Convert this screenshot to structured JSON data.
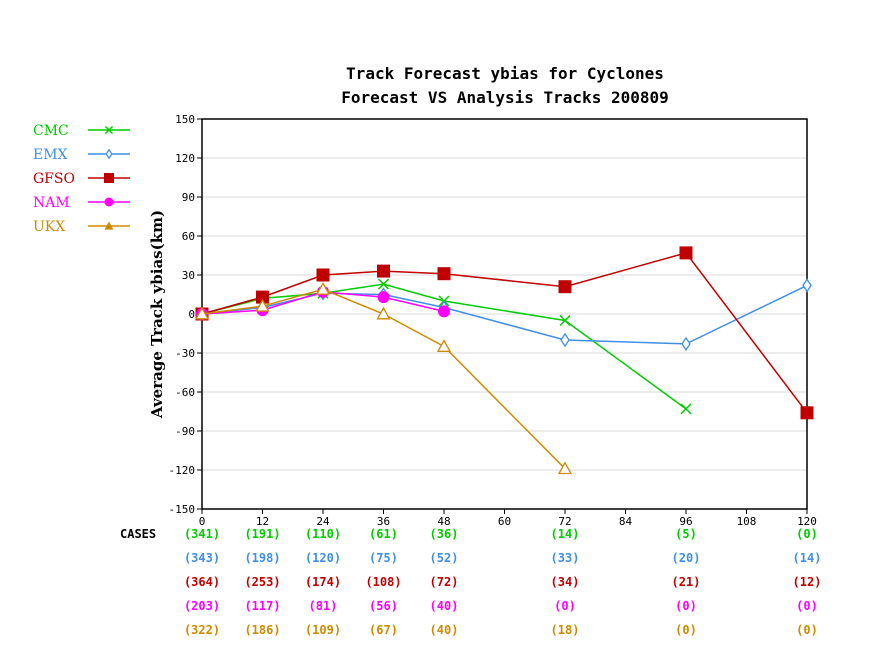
{
  "chart_data": {
    "type": "line",
    "title": "Track Forecast ybias for Cyclones",
    "subtitle": "Forecast VS Analysis Tracks 200809",
    "ylabel": "Average Track ybias(km)",
    "xlabel": "",
    "xlim": [
      0,
      120
    ],
    "ylim": [
      -150,
      150
    ],
    "xticks": [
      0,
      12,
      24,
      36,
      48,
      60,
      72,
      84,
      96,
      108,
      120
    ],
    "yticks": [
      -150,
      -120,
      -90,
      -60,
      -30,
      0,
      30,
      60,
      90,
      120,
      150
    ],
    "grid": true,
    "legend_position": "left-outside",
    "cases_label": "CASES",
    "series": [
      {
        "name": "CMC",
        "color": "#00cc00",
        "marker": "x",
        "points": [
          [
            0,
            0
          ],
          [
            12,
            12
          ],
          [
            24,
            16
          ],
          [
            36,
            23
          ],
          [
            48,
            10
          ],
          [
            72,
            -5
          ],
          [
            96,
            -73
          ]
        ],
        "cases": [
          "(341)",
          "(191)",
          "(110)",
          "(61)",
          "(36)",
          "",
          "(14)",
          "",
          "(5)",
          "",
          "(0)"
        ]
      },
      {
        "name": "EMX",
        "color": "#3f8fe8",
        "marker": "diamond-open",
        "points": [
          [
            0,
            0
          ],
          [
            12,
            5
          ],
          [
            24,
            16
          ],
          [
            36,
            15
          ],
          [
            48,
            5
          ],
          [
            72,
            -20
          ],
          [
            96,
            -23
          ],
          [
            120,
            22
          ]
        ],
        "cases": [
          "(343)",
          "(198)",
          "(120)",
          "(75)",
          "(52)",
          "",
          "(33)",
          "",
          "(20)",
          "",
          "(14)"
        ]
      },
      {
        "name": "GFSO",
        "color": "#c00000",
        "marker": "square",
        "points": [
          [
            0,
            0
          ],
          [
            12,
            13
          ],
          [
            24,
            30
          ],
          [
            36,
            33
          ],
          [
            48,
            31
          ],
          [
            72,
            21
          ],
          [
            96,
            47
          ],
          [
            120,
            -76
          ]
        ],
        "cases": [
          "(364)",
          "(253)",
          "(174)",
          "(108)",
          "(72)",
          "",
          "(34)",
          "",
          "(21)",
          "",
          "(12)"
        ]
      },
      {
        "name": "NAM",
        "color": "#ff00ff",
        "marker": "circle",
        "points": [
          [
            0,
            0
          ],
          [
            12,
            3
          ],
          [
            24,
            17
          ],
          [
            36,
            13
          ],
          [
            48,
            2
          ]
        ],
        "cases": [
          "(203)",
          "(117)",
          "(81)",
          "(56)",
          "(40)",
          "",
          "(0)",
          "",
          "(0)",
          "",
          "(0)"
        ]
      },
      {
        "name": "UKX",
        "color": "#d08a00",
        "marker": "triangle",
        "points": [
          [
            0,
            0
          ],
          [
            12,
            6
          ],
          [
            24,
            19
          ],
          [
            36,
            0
          ],
          [
            48,
            -25
          ],
          [
            72,
            -119
          ]
        ],
        "cases": [
          "(322)",
          "(186)",
          "(109)",
          "(67)",
          "(40)",
          "",
          "(18)",
          "",
          "(0)",
          "",
          "(0)"
        ]
      }
    ]
  }
}
